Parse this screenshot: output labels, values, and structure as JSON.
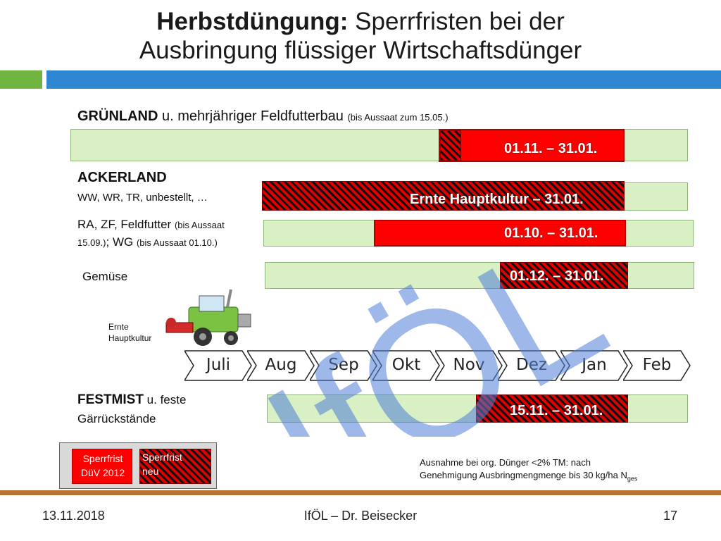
{
  "title": {
    "bold": "Herbstdüngung:",
    "rest_line1": " Sperrfristen bei der",
    "line2": "Ausbringung flüssiger Wirtschaftsdünger"
  },
  "rows": {
    "gruenland": {
      "label_bold": "GRÜNLAND",
      "label_rest": " u. mehrjähriger Feldfutterbau ",
      "label_note": "(bis Aussaat zum 15.05.)",
      "period": "01.11. – 31.01."
    },
    "ackerland": {
      "label_bold": "ACKERLAND",
      "sub_label": "WW, WR, TR, unbestellt, …",
      "period": "Ernte Hauptkultur – 31.01."
    },
    "ra_zf": {
      "label_main": "RA, ZF, Feldfutter ",
      "label_note1": "(bis Aussaat",
      "label_note2": "15.09.)",
      "label_semicolon": "; ",
      "label_wg": "WG ",
      "label_note3": "(bis Aussaat 01.10.)",
      "period": "01.10. – 31.01."
    },
    "gemuese": {
      "label": "Gemüse",
      "period": "01.12. – 31.01."
    },
    "festmist": {
      "label_bold": "FESTMIST",
      "label_rest": " u. feste",
      "label_line2": "Gärrückstände",
      "period": "15.11. – 31.01."
    }
  },
  "harvester_label_line1": "Ernte",
  "harvester_label_line2": "Hauptkultur",
  "months": [
    "Juli",
    "Aug",
    "Sep",
    "Okt",
    "Nov",
    "Dez",
    "Jan",
    "Feb"
  ],
  "legend": {
    "old_line1": "Sperrfrist",
    "old_line2": "DüV 2012",
    "new_line1": "Sperrfrist",
    "new_line2": "neu"
  },
  "exception_note": {
    "line1": "Ausnahme bei org. Dünger <2% TM: nach",
    "line2": "Genehmigung Ausbringmengmenge bis 30 kg/ha N",
    "subscript": "ges"
  },
  "watermark": "IfÖL",
  "footer": {
    "date": "13.11.2018",
    "author": "IfÖL – Dr. Beisecker",
    "page": "17"
  },
  "colors": {
    "track_green": "#d9f0c4",
    "period_red": "#ff0000",
    "title_bar_blue": "#2f86d3",
    "title_bar_green": "#70b540",
    "footer_line": "#b87333",
    "watermark_blue": "#4f7fd8"
  }
}
